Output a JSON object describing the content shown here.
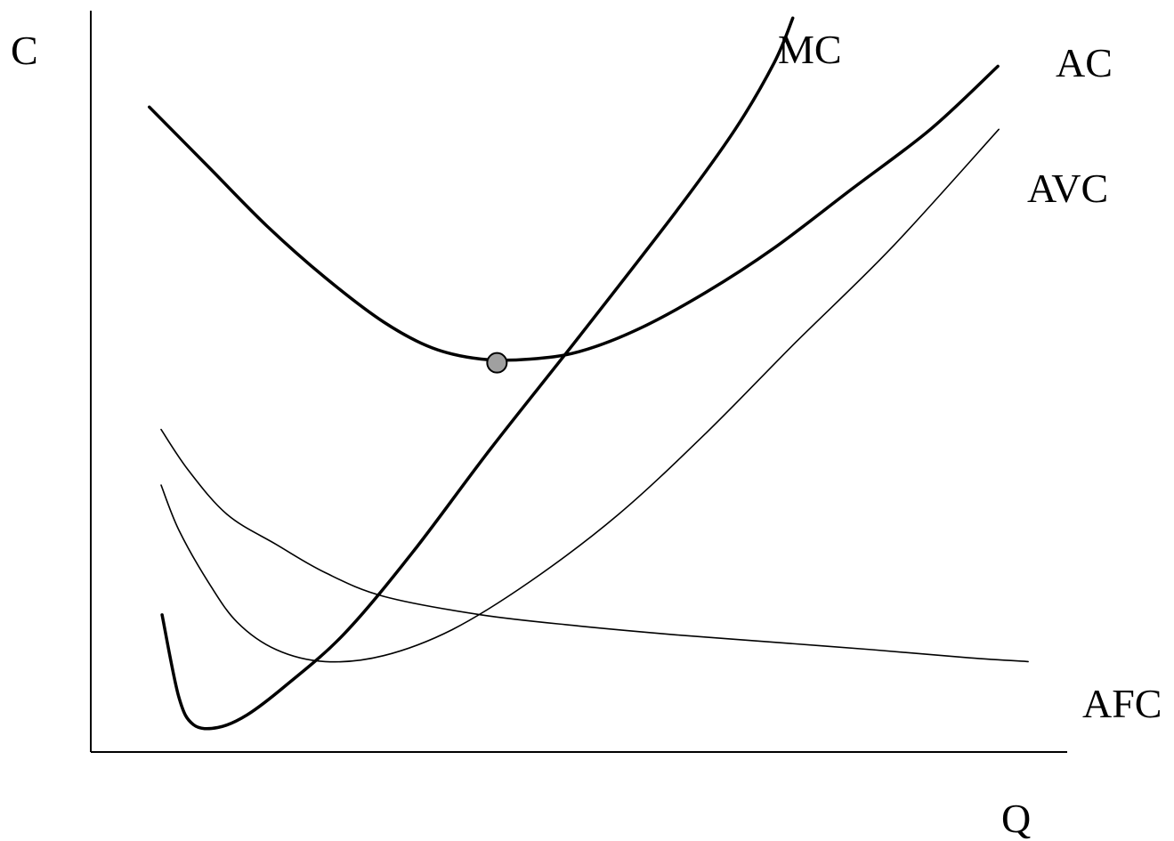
{
  "chart_data": {
    "type": "line",
    "title": "",
    "xlabel": "Q",
    "ylabel": "C",
    "grid": false,
    "xlim": [
      0,
      10
    ],
    "ylim": [
      0,
      10
    ],
    "series": [
      {
        "name": "MC",
        "weight": "thick",
        "points": [
          [
            0.73,
            1.85
          ],
          [
            0.9,
            0.75
          ],
          [
            1.05,
            0.37
          ],
          [
            1.3,
            0.33
          ],
          [
            1.6,
            0.5
          ],
          [
            2.0,
            0.9
          ],
          [
            2.6,
            1.6
          ],
          [
            3.3,
            2.7
          ],
          [
            4.1,
            4.1
          ],
          [
            5.0,
            5.6
          ],
          [
            6.0,
            7.3
          ],
          [
            6.6,
            8.4
          ],
          [
            7.0,
            9.3
          ],
          [
            7.19,
            9.9
          ]
        ]
      },
      {
        "name": "AC",
        "weight": "thick",
        "points": [
          [
            0.6,
            8.7
          ],
          [
            1.2,
            7.9
          ],
          [
            1.8,
            7.1
          ],
          [
            2.4,
            6.4
          ],
          [
            3.0,
            5.8
          ],
          [
            3.5,
            5.45
          ],
          [
            4.0,
            5.3
          ],
          [
            4.5,
            5.3
          ],
          [
            5.0,
            5.4
          ],
          [
            5.6,
            5.7
          ],
          [
            6.3,
            6.2
          ],
          [
            7.0,
            6.8
          ],
          [
            7.8,
            7.6
          ],
          [
            8.6,
            8.4
          ],
          [
            9.29,
            9.25
          ]
        ]
      },
      {
        "name": "AVC",
        "weight": "thin",
        "points": [
          [
            0.72,
            3.6
          ],
          [
            0.9,
            3.0
          ],
          [
            1.2,
            2.3
          ],
          [
            1.5,
            1.75
          ],
          [
            1.9,
            1.38
          ],
          [
            2.4,
            1.22
          ],
          [
            3.0,
            1.3
          ],
          [
            3.7,
            1.65
          ],
          [
            4.5,
            2.3
          ],
          [
            5.4,
            3.2
          ],
          [
            6.3,
            4.3
          ],
          [
            7.2,
            5.5
          ],
          [
            8.2,
            6.8
          ],
          [
            9.3,
            8.4
          ]
        ]
      },
      {
        "name": "AFC",
        "weight": "thin",
        "points": [
          [
            0.72,
            4.35
          ],
          [
            1.0,
            3.8
          ],
          [
            1.4,
            3.2
          ],
          [
            1.9,
            2.8
          ],
          [
            2.4,
            2.42
          ],
          [
            3.0,
            2.1
          ],
          [
            4.0,
            1.85
          ],
          [
            5.0,
            1.7
          ],
          [
            6.0,
            1.58
          ],
          [
            7.0,
            1.48
          ],
          [
            8.0,
            1.38
          ],
          [
            9.0,
            1.27
          ],
          [
            9.6,
            1.22
          ]
        ]
      }
    ],
    "markers": [
      {
        "name": "AC minimum",
        "x": 4.16,
        "y": 5.25
      }
    ],
    "labels": [
      "MC",
      "AC",
      "AVC",
      "AFC"
    ]
  },
  "colors": {
    "line": "#000000",
    "marker_fill": "#a0a0a0",
    "background": "#ffffff"
  }
}
